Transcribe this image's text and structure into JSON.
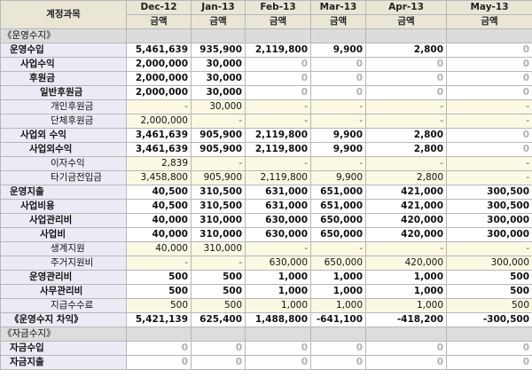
{
  "header": {
    "account_label": "계정과목",
    "months": [
      "Dec-12",
      "Jan-13",
      "Feb-13",
      "Mar-13",
      "Apr-13",
      "May-13"
    ],
    "sub_label": "금액"
  },
  "rows": [
    {
      "label": "《운영수지》",
      "indent": 0,
      "type": "section",
      "values": [
        "",
        "",
        "",
        "",
        "",
        ""
      ]
    },
    {
      "label": "운영수입",
      "indent": 1,
      "type": "bold",
      "values": [
        "5,461,639",
        "935,900",
        "2,119,800",
        "9,900",
        "2,800",
        "0"
      ]
    },
    {
      "label": "사업수익",
      "indent": 2,
      "type": "bold",
      "values": [
        "2,000,000",
        "30,000",
        "0",
        "0",
        "0",
        "0"
      ]
    },
    {
      "label": "후원금",
      "indent": 3,
      "type": "bold",
      "values": [
        "2,000,000",
        "30,000",
        "0",
        "0",
        "0",
        "0"
      ]
    },
    {
      "label": "일반후원금",
      "indent": 4,
      "type": "bold",
      "values": [
        "2,000,000",
        "30,000",
        "0",
        "0",
        "0",
        "0"
      ]
    },
    {
      "label": "개인후원금",
      "indent": 5,
      "type": "detail",
      "values": [
        "-",
        "30,000",
        "-",
        "-",
        "-",
        "-"
      ]
    },
    {
      "label": "단체후원금",
      "indent": 5,
      "type": "detail",
      "values": [
        "2,000,000",
        "-",
        "-",
        "-",
        "-",
        "-"
      ]
    },
    {
      "label": "사업외 수익",
      "indent": 2,
      "type": "bold",
      "values": [
        "3,461,639",
        "905,900",
        "2,119,800",
        "9,900",
        "2,800",
        "0"
      ]
    },
    {
      "label": "사업외수익",
      "indent": 3,
      "type": "bold",
      "values": [
        "3,461,639",
        "905,900",
        "2,119,800",
        "9,900",
        "2,800",
        "0"
      ]
    },
    {
      "label": "이자수익",
      "indent": 5,
      "type": "detail",
      "values": [
        "2,839",
        "-",
        "-",
        "-",
        "-",
        "-"
      ]
    },
    {
      "label": "타기금전입금",
      "indent": 5,
      "type": "detail",
      "values": [
        "3,458,800",
        "905,900",
        "2,119,800",
        "9,900",
        "2,800",
        "-"
      ]
    },
    {
      "label": "운영지출",
      "indent": 1,
      "type": "bold",
      "values": [
        "40,500",
        "310,500",
        "631,000",
        "651,000",
        "421,000",
        "300,500"
      ]
    },
    {
      "label": "사업비용",
      "indent": 2,
      "type": "bold",
      "values": [
        "40,500",
        "310,500",
        "631,000",
        "651,000",
        "421,000",
        "300,500"
      ]
    },
    {
      "label": "사업관리비",
      "indent": 3,
      "type": "bold",
      "values": [
        "40,000",
        "310,000",
        "630,000",
        "650,000",
        "420,000",
        "300,000"
      ]
    },
    {
      "label": "사업비",
      "indent": 4,
      "type": "bold",
      "values": [
        "40,000",
        "310,000",
        "630,000",
        "650,000",
        "420,000",
        "300,000"
      ]
    },
    {
      "label": "생계지원",
      "indent": 5,
      "type": "detail",
      "values": [
        "40,000",
        "310,000",
        "-",
        "-",
        "-",
        "-"
      ]
    },
    {
      "label": "주거지원비",
      "indent": 5,
      "type": "detail",
      "values": [
        "-",
        "-",
        "630,000",
        "650,000",
        "420,000",
        "300,000"
      ]
    },
    {
      "label": "운영관리비",
      "indent": 3,
      "type": "bold",
      "values": [
        "500",
        "500",
        "1,000",
        "1,000",
        "1,000",
        "500"
      ]
    },
    {
      "label": "사무관리비",
      "indent": 4,
      "type": "bold",
      "values": [
        "500",
        "500",
        "1,000",
        "1,000",
        "1,000",
        "500"
      ]
    },
    {
      "label": "지급수수료",
      "indent": 5,
      "type": "detail",
      "values": [
        "500",
        "500",
        "1,000",
        "1,000",
        "1,000",
        "500"
      ]
    },
    {
      "label": "《운영수지 차익》",
      "indent": 1,
      "type": "bold",
      "values": [
        "5,421,139",
        "625,400",
        "1,488,800",
        "-641,100",
        "-418,200",
        "-300,500"
      ]
    },
    {
      "label": "《자금수지》",
      "indent": 0,
      "type": "section",
      "values": [
        "",
        "",
        "",
        "",
        "",
        ""
      ]
    },
    {
      "label": "자금수입",
      "indent": 1,
      "type": "bold",
      "values": [
        "0",
        "0",
        "0",
        "0",
        "0",
        "0"
      ]
    },
    {
      "label": "자금지출",
      "indent": 1,
      "type": "bold",
      "values": [
        "0",
        "0",
        "0",
        "0",
        "0",
        "0"
      ]
    }
  ]
}
